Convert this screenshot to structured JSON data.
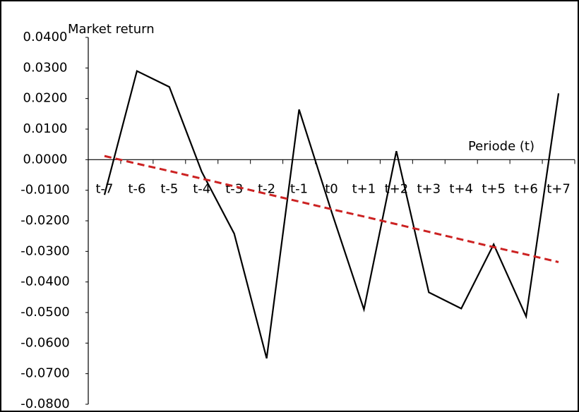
{
  "chart_data": {
    "type": "line",
    "y_label": "Market return",
    "x_label": "Periode (t)",
    "categories": [
      "t-7",
      "t-6",
      "t-5",
      "t-4",
      "t-3",
      "t-2",
      "t-1",
      "t0",
      "t+1",
      "t+2",
      "t+3",
      "t+4",
      "t+5",
      "t+6",
      "t+7"
    ],
    "series": [
      {
        "color": "#000000",
        "style": "solid",
        "values": [
          -0.0115,
          0.029,
          0.0238,
          -0.004,
          -0.0242,
          -0.065,
          0.0164,
          -0.017,
          -0.049,
          0.0028,
          -0.0434,
          -0.0487,
          -0.0277,
          -0.0513,
          0.0217
        ]
      },
      {
        "color": "#cc2222",
        "style": "dashed",
        "values": [
          0.0012,
          -0.0013,
          -0.0037,
          -0.0062,
          -0.0087,
          -0.0112,
          -0.0137,
          -0.0162,
          -0.0186,
          -0.0211,
          -0.0236,
          -0.0261,
          -0.0286,
          -0.031,
          -0.0335
        ]
      }
    ],
    "ylim": [
      -0.08,
      0.04
    ],
    "yticks": [
      {
        "value": 0.04,
        "label": "0.0400"
      },
      {
        "value": 0.03,
        "label": "0.0300"
      },
      {
        "value": 0.02,
        "label": "0.0200"
      },
      {
        "value": 0.01,
        "label": "0.0100"
      },
      {
        "value": 0,
        "label": "0.0000"
      },
      {
        "value": -0.01,
        "label": "-0.0100"
      },
      {
        "value": -0.02,
        "label": "-0.0200"
      },
      {
        "value": -0.03,
        "label": "-0.0300"
      },
      {
        "value": -0.04,
        "label": "-0.0400"
      },
      {
        "value": -0.05,
        "label": "-0.0500"
      },
      {
        "value": -0.06,
        "label": "-0.0600"
      },
      {
        "value": -0.07,
        "label": "-0.0700"
      },
      {
        "value": -0.08,
        "label": "-0.0800"
      }
    ]
  }
}
